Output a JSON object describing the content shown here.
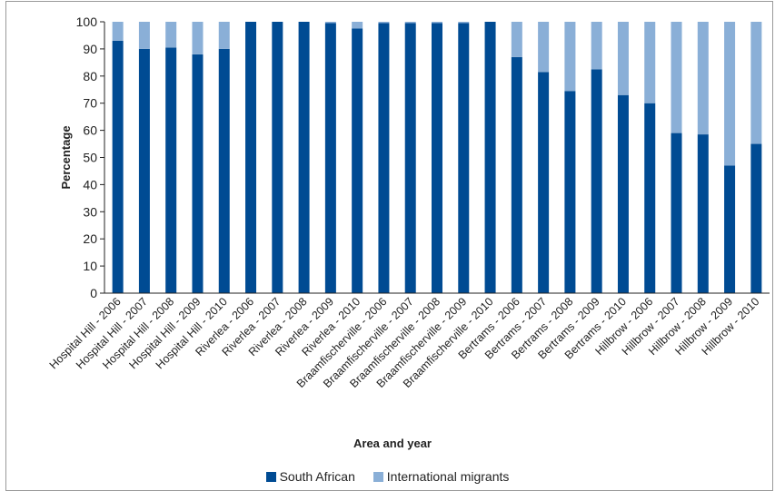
{
  "chart_data": {
    "type": "bar",
    "stacked": true,
    "xlabel": "Area and year",
    "ylabel": "Percentage",
    "ylim": [
      0,
      100
    ],
    "yticks": [
      0,
      10,
      20,
      30,
      40,
      50,
      60,
      70,
      80,
      90,
      100
    ],
    "grid": false,
    "legend_position": "bottom",
    "categories": [
      "Hospital Hill - 2006",
      "Hospital Hill - 2007",
      "Hospital Hill - 2008",
      "Hospital Hill - 2009",
      "Hospital Hill - 2010",
      "Riverlea - 2006",
      "Riverlea - 2007",
      "Riverlea - 2008",
      "Riverlea - 2009",
      "Riverlea - 2010",
      "Braamfischerville - 2006",
      "Braamfischerville - 2007",
      "Braamfischerville - 2008",
      "Braamfischerville - 2009",
      "Braamfischerville - 2010",
      "Bertrams - 2006",
      "Bertrams - 2007",
      "Bertrams - 2008",
      "Bertrams - 2009",
      "Bertrams - 2010",
      "Hillbrow - 2006",
      "Hillbrow - 2007",
      "Hillbrow - 2008",
      "Hillbrow - 2009",
      "Hillbrow - 2010"
    ],
    "series": [
      {
        "name": "South African",
        "color": "#004b93",
        "values": [
          93,
          90,
          90.5,
          88,
          90,
          100,
          100,
          100,
          99.5,
          97.5,
          99.5,
          99.5,
          99.5,
          99.5,
          100,
          87,
          81.5,
          74.5,
          82.5,
          73,
          70,
          59,
          58.5,
          47,
          55
        ]
      },
      {
        "name": "International migrants",
        "color": "#8aafd7",
        "values": [
          7,
          10,
          9.5,
          12,
          10,
          0,
          0,
          0,
          0.5,
          2.5,
          0.5,
          0.5,
          0.5,
          0.5,
          0,
          13,
          18.5,
          25.5,
          17.5,
          27,
          30,
          41,
          41.5,
          53,
          45
        ]
      }
    ]
  }
}
